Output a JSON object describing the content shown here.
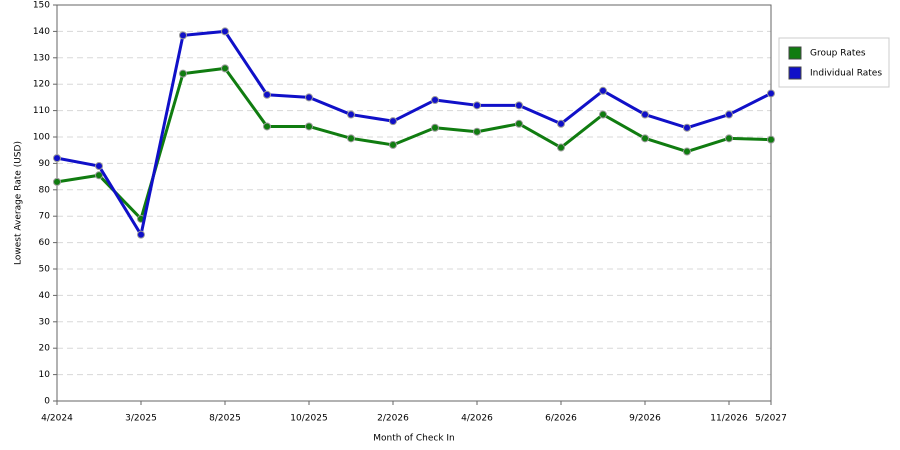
{
  "chart_data": {
    "type": "line",
    "x_label": "Month of Check In",
    "y_label": "Lowest Average Rate (USD)",
    "categories": [
      "4/2024",
      null,
      "3/2025",
      null,
      "8/2025",
      null,
      "10/2025",
      null,
      "2/2026",
      null,
      "4/2026",
      null,
      "6/2026",
      null,
      "9/2026",
      null,
      "11/2026",
      "5/2027"
    ],
    "series": [
      {
        "name": "Group Rates",
        "color": "#107c10",
        "values": [
          83,
          85.5,
          69,
          124,
          126,
          104,
          104,
          99.5,
          97,
          103.5,
          102,
          105,
          96,
          108.5,
          99.5,
          94.5,
          99.5,
          99
        ]
      },
      {
        "name": "Individual Rates",
        "color": "#1010c8",
        "values": [
          92,
          89,
          63,
          138.5,
          140,
          116,
          115,
          108.5,
          106,
          114,
          112,
          112,
          105,
          117.5,
          108.5,
          103.5,
          108.5,
          116.5
        ]
      }
    ],
    "ylim": [
      0,
      150
    ],
    "yticks": [
      0,
      10,
      20,
      30,
      40,
      50,
      60,
      70,
      80,
      90,
      100,
      110,
      120,
      130,
      140,
      150
    ],
    "grid": true,
    "legend": "right"
  }
}
